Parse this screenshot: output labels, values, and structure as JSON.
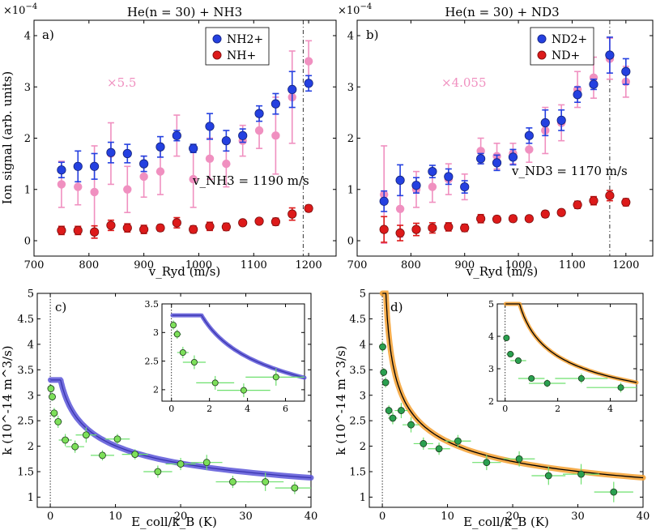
{
  "chart_data": [
    {
      "type": "scatter",
      "panel": "a",
      "panel_label": "a)",
      "title": "He(n = 30) + NH3",
      "xlabel": "v_Ryd (m/s)",
      "ylabel": "Ion signal (arb. units)",
      "exponent_label": "×10",
      "exponent_value": "−4",
      "xlim": [
        700,
        1250
      ],
      "ylim": [
        -0.3,
        4.3
      ],
      "xticks": [
        700,
        800,
        900,
        1000,
        1100,
        1200
      ],
      "yticks": [
        0,
        1,
        2,
        3,
        4
      ],
      "scale_annotation": "×5.5",
      "velocity_annotation": "v_NH3 = 1190 m/s",
      "vline_x": 1190,
      "legend": [
        "NH2+",
        "NH+"
      ],
      "series": [
        {
          "name": "NH2+",
          "color": "#2440e0",
          "x": [
            750,
            780,
            810,
            840,
            870,
            900,
            930,
            960,
            990,
            1020,
            1050,
            1080,
            1110,
            1140,
            1170,
            1200
          ],
          "y": [
            1.38,
            1.45,
            1.45,
            1.72,
            1.7,
            1.5,
            1.83,
            2.05,
            1.8,
            2.23,
            1.95,
            2.05,
            2.48,
            2.67,
            2.95,
            3.07
          ],
          "err": [
            0.15,
            0.3,
            0.25,
            0.2,
            0.18,
            0.15,
            0.2,
            0.1,
            0.08,
            0.25,
            0.2,
            0.13,
            0.15,
            0.2,
            0.35,
            0.15
          ]
        },
        {
          "name": "NH2+ scaled",
          "color": "#f090c0",
          "x": [
            750,
            780,
            810,
            840,
            870,
            900,
            930,
            960,
            990,
            1020,
            1050,
            1080,
            1110,
            1140,
            1170,
            1200
          ],
          "y": [
            1.1,
            1.05,
            0.95,
            1.7,
            1.0,
            1.25,
            1.35,
            2.05,
            1.2,
            1.6,
            1.5,
            1.95,
            2.15,
            2.05,
            2.8,
            3.5
          ],
          "err": [
            0.45,
            0.35,
            0.9,
            0.6,
            0.45,
            0.4,
            0.45,
            0.4,
            0.55,
            0.4,
            0.45,
            0.3,
            0.35,
            0.75,
            0.9,
            0.4
          ]
        },
        {
          "name": "NH+",
          "color": "#dd1a1a",
          "x": [
            750,
            780,
            810,
            840,
            870,
            900,
            930,
            960,
            990,
            1020,
            1050,
            1080,
            1110,
            1140,
            1170,
            1200
          ],
          "y": [
            0.2,
            0.2,
            0.17,
            0.3,
            0.25,
            0.22,
            0.25,
            0.35,
            0.22,
            0.28,
            0.27,
            0.35,
            0.38,
            0.37,
            0.52,
            0.63
          ],
          "err": [
            0.08,
            0.08,
            0.12,
            0.1,
            0.08,
            0.08,
            0.06,
            0.1,
            0.07,
            0.08,
            0.07,
            0.04,
            0.04,
            0.07,
            0.12,
            0.06
          ]
        }
      ]
    },
    {
      "type": "scatter",
      "panel": "b",
      "panel_label": "b)",
      "title": "He(n = 30) + ND3",
      "xlabel": "v_Ryd (m/s)",
      "exponent_label": "×10",
      "exponent_value": "−4",
      "xlim": [
        700,
        1250
      ],
      "ylim": [
        -0.3,
        4.3
      ],
      "xticks": [
        700,
        800,
        900,
        1000,
        1100,
        1200
      ],
      "yticks": [
        0,
        1,
        2,
        3,
        4
      ],
      "scale_annotation": "×4.055",
      "velocity_annotation": "v_ND3 = 1170 m/s",
      "vline_x": 1170,
      "legend": [
        "ND2+",
        "ND+"
      ],
      "series": [
        {
          "name": "ND2+",
          "color": "#2440e0",
          "x": [
            750,
            780,
            810,
            840,
            870,
            900,
            930,
            960,
            990,
            1020,
            1050,
            1080,
            1110,
            1140,
            1170,
            1200
          ],
          "y": [
            0.77,
            1.18,
            1.08,
            1.35,
            1.25,
            1.05,
            1.6,
            1.52,
            1.63,
            2.05,
            2.3,
            2.35,
            2.85,
            3.05,
            3.62,
            3.3
          ],
          "err": [
            0.2,
            0.3,
            0.15,
            0.12,
            0.15,
            0.12,
            0.1,
            0.15,
            0.15,
            0.15,
            0.25,
            0.2,
            0.15,
            0.1,
            0.35,
            0.25
          ]
        },
        {
          "name": "ND2+ scaled",
          "color": "#f090c0",
          "x": [
            750,
            780,
            810,
            840,
            870,
            900,
            930,
            960,
            990,
            1020,
            1050,
            1080,
            1110,
            1140,
            1170,
            1200
          ],
          "y": [
            0.9,
            0.62,
            1.0,
            1.05,
            1.2,
            1.05,
            1.75,
            1.65,
            1.7,
            1.78,
            2.15,
            2.3,
            2.95,
            3.18,
            3.55,
            3.1
          ],
          "err": [
            0.95,
            0.55,
            0.35,
            0.3,
            0.3,
            0.25,
            0.25,
            0.25,
            0.2,
            0.25,
            0.45,
            0.35,
            0.35,
            0.4,
            0.4,
            0.3
          ]
        },
        {
          "name": "ND+",
          "color": "#dd1a1a",
          "x": [
            750,
            780,
            810,
            840,
            870,
            900,
            930,
            960,
            990,
            1020,
            1050,
            1080,
            1110,
            1140,
            1170,
            1200
          ],
          "y": [
            0.22,
            0.15,
            0.22,
            0.25,
            0.27,
            0.25,
            0.43,
            0.42,
            0.43,
            0.43,
            0.52,
            0.55,
            0.7,
            0.78,
            0.88,
            0.75
          ],
          "err": [
            0.25,
            0.15,
            0.12,
            0.1,
            0.08,
            0.07,
            0.08,
            0.06,
            0.06,
            0.05,
            0.06,
            0.05,
            0.07,
            0.08,
            0.1,
            0.07
          ]
        }
      ]
    },
    {
      "type": "line",
      "panel": "c",
      "panel_label": "c)",
      "xlabel": "E_coll/k_B (K)",
      "ylabel": "k (10^-14 m^3/s)",
      "xlim": [
        -2,
        40
      ],
      "ylim": [
        0.8,
        5.0
      ],
      "xticks": [
        0,
        10,
        20,
        30,
        40
      ],
      "yticks": [
        1,
        1.5,
        2,
        2.5,
        3,
        3.5,
        4,
        4.5,
        5
      ],
      "curve": {
        "color": "#5a55d8",
        "x0": 0.05,
        "x1": 40,
        "ymax": 3.3
      },
      "points": {
        "color": "#7de05a",
        "x": [
          0.1,
          0.3,
          0.6,
          1.2,
          2.3,
          3.8,
          5.5,
          8,
          10.3,
          13,
          16.5,
          20,
          24,
          28,
          33,
          37.5
        ],
        "y": [
          3.13,
          2.97,
          2.65,
          2.48,
          2.12,
          1.99,
          2.22,
          1.82,
          2.14,
          1.84,
          1.5,
          1.65,
          1.68,
          1.3,
          1.3,
          1.18
        ],
        "xerr": [
          0.1,
          0.2,
          0.3,
          0.6,
          1.0,
          1.4,
          1.6,
          1.8,
          1.9,
          2.0,
          2.2,
          2.3,
          2.4,
          2.6,
          2.8,
          3.0
        ],
        "yerr": [
          0.08,
          0.08,
          0.1,
          0.12,
          0.12,
          0.12,
          0.15,
          0.1,
          0.1,
          0.1,
          0.12,
          0.12,
          0.15,
          0.12,
          0.18,
          0.12
        ]
      },
      "inset": {
        "xlim": [
          -0.5,
          7
        ],
        "ylim": [
          1.8,
          3.5
        ],
        "xticks": [
          0,
          2,
          4,
          6
        ],
        "yticks": [
          2,
          2.5,
          3,
          3.5
        ]
      }
    },
    {
      "type": "line",
      "panel": "d",
      "panel_label": "d)",
      "xlabel": "E_coll/k_B (K)",
      "ylabel": "k (10^-14 m^3/s)",
      "xlim": [
        -2,
        40
      ],
      "ylim": [
        0.8,
        5.0
      ],
      "xticks": [
        0,
        10,
        20,
        30,
        40
      ],
      "yticks": [
        1,
        1.5,
        2,
        2.5,
        3,
        3.5,
        4,
        4.5,
        5
      ],
      "curve": {
        "color": "#f5a030",
        "x0": 0.02,
        "x1": 40,
        "ymax": 5.0
      },
      "points": {
        "color": "#2aa050",
        "x": [
          0.05,
          0.2,
          0.5,
          1.0,
          1.6,
          2.9,
          4.4,
          6.3,
          8.7,
          11.6,
          16,
          21,
          25.5,
          30.5,
          35.5
        ],
        "y": [
          3.95,
          3.45,
          3.25,
          2.7,
          2.55,
          2.7,
          2.42,
          2.05,
          1.95,
          2.1,
          1.68,
          1.75,
          1.42,
          1.45,
          1.1
        ],
        "xerr": [
          0.05,
          0.15,
          0.3,
          0.5,
          0.7,
          1.0,
          1.3,
          1.5,
          1.7,
          2.0,
          2.2,
          2.4,
          2.6,
          2.8,
          3.0
        ],
        "yerr": [
          0.1,
          0.08,
          0.1,
          0.1,
          0.12,
          0.15,
          0.15,
          0.12,
          0.12,
          0.12,
          0.15,
          0.15,
          0.18,
          0.2,
          0.2
        ]
      },
      "inset": {
        "xlim": [
          -0.3,
          5
        ],
        "ylim": [
          2.0,
          5.0
        ],
        "xticks": [
          0,
          2,
          4
        ],
        "yticks": [
          2,
          3,
          4,
          5
        ]
      }
    }
  ]
}
